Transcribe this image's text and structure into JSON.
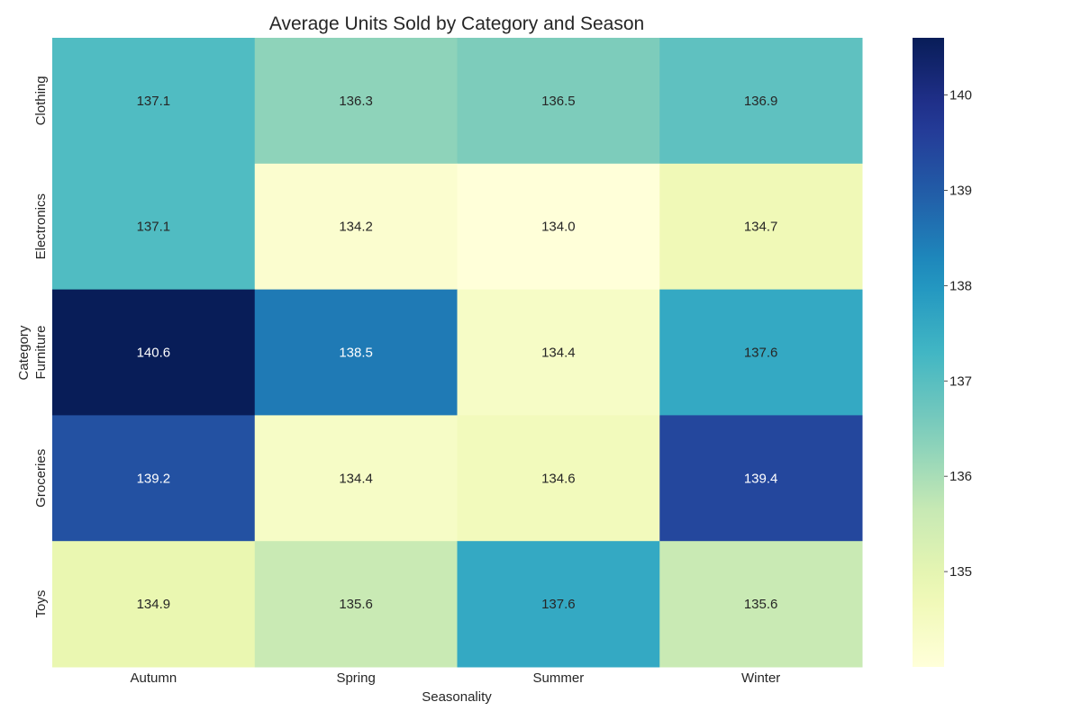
{
  "chart_data": {
    "type": "heatmap",
    "title": "Average Units Sold by Category and Season",
    "xlabel": "Seasonality",
    "ylabel": "Category",
    "x_categories": [
      "Autumn",
      "Spring",
      "Summer",
      "Winter"
    ],
    "y_categories": [
      "Clothing",
      "Electronics",
      "Furniture",
      "Groceries",
      "Toys"
    ],
    "values": [
      [
        137.1,
        136.3,
        136.5,
        136.9
      ],
      [
        137.1,
        134.2,
        134.0,
        134.7
      ],
      [
        140.6,
        138.5,
        134.4,
        137.6
      ],
      [
        139.2,
        134.4,
        134.6,
        139.4
      ],
      [
        134.9,
        135.6,
        137.6,
        135.6
      ]
    ],
    "value_format": "0.1f",
    "colormap": "YlGnBu",
    "color_range": [
      134.0,
      140.6
    ],
    "colorbar_ticks": [
      135,
      136,
      137,
      138,
      139,
      140
    ],
    "colorbar_position": "right",
    "grid": false
  }
}
